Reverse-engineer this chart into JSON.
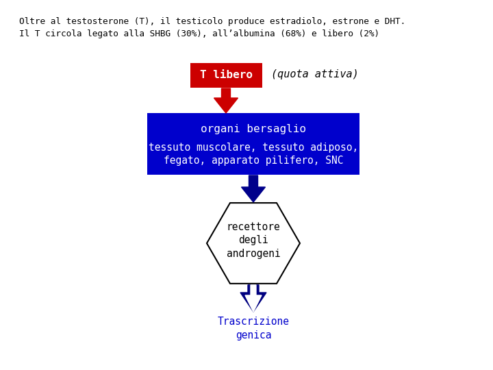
{
  "title_line1": "Oltre al testosterone (T), il testicolo produce estradiolo, estrone e DHT.",
  "title_line2": "Il T circola legato alla SHBG (30%), all’albumina (68%) e libero (2%)",
  "box1_text": "T libero",
  "box1_side_text": "(quota attiva)",
  "box1_bg": "#cc0000",
  "box1_text_color": "#ffffff",
  "box2_title": "organi bersaglio",
  "box2_body": "tessuto muscolare, tessuto adiposo,\nfegato, apparato pilifero, SNC",
  "box2_bg": "#0000cc",
  "box2_text_color": "#ffffff",
  "hex_text": "recettore\ndegli\nandrogeni",
  "hex_border": "#000080",
  "hex_fill": "#ffffff",
  "hex_text_color": "#000000",
  "final_text_line1": "Trascrizione",
  "final_text_line2": "genica",
  "final_text_color": "#0000cc",
  "arrow1_color": "#cc0000",
  "arrow2_color": "#00008b",
  "bg_color": "#ffffff",
  "font_family": "monospace"
}
